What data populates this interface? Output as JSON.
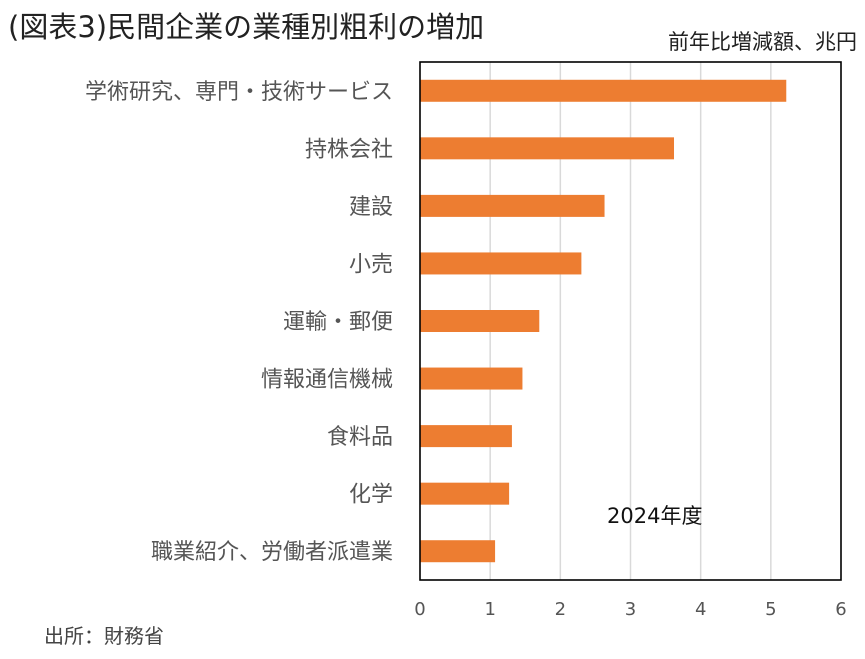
{
  "title": "(図表3)民間企業の業種別粗利の増加",
  "unit_label": "前年比増減額、兆円",
  "source": "出所：財務省",
  "colors": {
    "bar": "#ED7D31",
    "grid": "#D9D9D9",
    "frame": "#000000"
  },
  "chart_data": {
    "type": "bar",
    "orientation": "horizontal",
    "title": "(図表3)民間企業の業種別粗利の増加",
    "ylabel": "前年比増減額、兆円",
    "categories": [
      "学術研究、専門・技術サービス",
      "持株会社",
      "建設",
      "小売",
      "運輸・郵便",
      "情報通信機械",
      "食料品",
      "化学",
      "職業紹介、労働者派遣業"
    ],
    "values": [
      5.22,
      3.62,
      2.63,
      2.3,
      1.7,
      1.46,
      1.31,
      1.27,
      1.07
    ],
    "xlim": [
      0,
      6
    ],
    "xticks": [
      "0",
      "1",
      "2",
      "3",
      "4",
      "5",
      "6"
    ],
    "grid": true,
    "annotation": "2024年度"
  }
}
